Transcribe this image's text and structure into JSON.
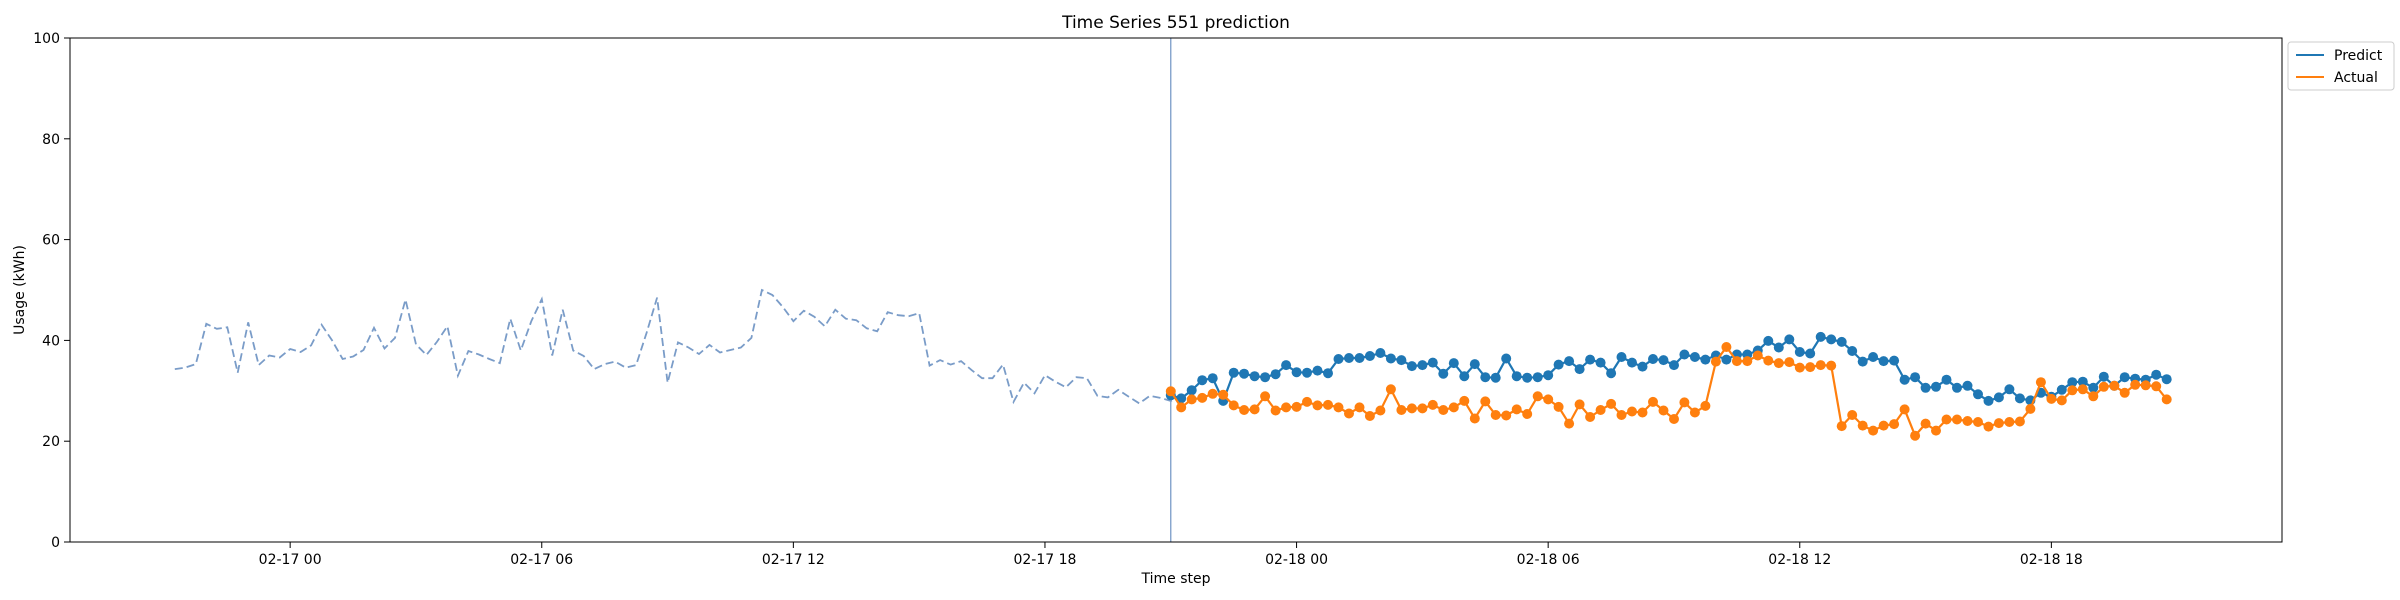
{
  "chart_data": {
    "type": "line",
    "title": "Time Series 551 prediction",
    "xlabel": "Time step",
    "ylabel": "Usage (kWh)",
    "ylim": [
      0,
      100
    ],
    "yticks": [
      "0",
      "20",
      "40",
      "60",
      "80",
      "100"
    ],
    "xticks": [
      "02-17 00",
      "02-17 06",
      "02-17 12",
      "02-17 18",
      "02-18 00",
      "02-18 06",
      "02-18 12",
      "02-18 18"
    ],
    "xtick_hours": [
      24,
      30,
      36,
      42,
      48,
      54,
      60,
      66
    ],
    "xlim_hours": [
      18.75,
      71.5
    ],
    "x_unit": "hours from 02-16 00:00",
    "grid": false,
    "legend_position": "top-right outside",
    "forecast_start_hour": 45.0,
    "colors": {
      "history": "#7a9cc8",
      "predict": "#1f77b4",
      "actual": "#ff7f0e",
      "divider": "#7a9cc8"
    },
    "history": {
      "x_start": 21.25,
      "x_step": 0.25,
      "values": [
        34.3,
        34.6,
        35.3,
        43.3,
        42.3,
        42.6,
        33.6,
        43.6,
        35.1,
        37.0,
        36.6,
        38.3,
        37.7,
        39.0,
        43.1,
        40.0,
        36.3,
        36.8,
        38.1,
        42.5,
        38.4,
        40.5,
        48.1,
        39.2,
        37.1,
        39.7,
        42.8,
        33.0,
        37.9,
        37.2,
        36.3,
        35.5,
        44.3,
        38.0,
        43.8,
        48.2,
        37.0,
        46.1,
        38.0,
        36.9,
        34.3,
        35.3,
        35.8,
        34.6,
        35.1,
        41.5,
        48.5,
        31.6,
        39.6,
        38.6,
        37.3,
        39.1,
        37.6,
        38.1,
        38.6,
        40.5,
        50.0,
        49.0,
        46.6,
        43.8,
        45.9,
        44.7,
        42.8,
        46.1,
        44.3,
        44.0,
        42.4,
        41.8,
        45.6,
        45.0,
        44.8,
        45.4,
        35.0,
        36.1,
        35.2,
        35.9,
        34.1,
        32.5,
        32.5,
        35.2,
        27.8,
        31.6,
        29.5,
        33.1,
        31.8,
        30.7,
        32.7,
        32.5,
        29.0,
        28.7,
        30.2,
        28.8,
        27.5,
        29.0,
        28.6,
        28.0,
        28.7
      ]
    },
    "series": [
      {
        "name": "Predict",
        "x_start": 45.0,
        "x_step": 0.25,
        "values": [
          29.1,
          28.5,
          30.1,
          32.1,
          32.5,
          28.0,
          33.6,
          33.4,
          32.9,
          32.7,
          33.3,
          35.1,
          33.7,
          33.6,
          34.0,
          33.5,
          36.3,
          36.5,
          36.5,
          36.9,
          37.5,
          36.4,
          36.1,
          34.9,
          35.1,
          35.6,
          33.4,
          35.5,
          32.9,
          35.3,
          32.7,
          32.6,
          36.4,
          32.9,
          32.6,
          32.7,
          33.1,
          35.2,
          35.9,
          34.3,
          36.2,
          35.6,
          33.5,
          36.7,
          35.6,
          34.8,
          36.3,
          36.1,
          35.1,
          37.2,
          36.7,
          36.2,
          37.0,
          36.2,
          37.2,
          37.2,
          38.0,
          39.9,
          38.6,
          40.2,
          37.7,
          37.4,
          40.7,
          40.2,
          39.7,
          37.9,
          35.8,
          36.7,
          35.9,
          36.0,
          32.2,
          32.7,
          30.6,
          30.8,
          32.2,
          30.6,
          31.0,
          29.3,
          28.0,
          28.7,
          30.3,
          28.5,
          28.1,
          29.6,
          28.8,
          30.2,
          31.7,
          31.8,
          30.6,
          32.8,
          31.0,
          32.7,
          32.4,
          32.2,
          33.2,
          32.3
        ]
      },
      {
        "name": "Actual",
        "x_start": 45.0,
        "x_step": 0.25,
        "values": [
          29.9,
          26.7,
          28.3,
          28.6,
          29.4,
          29.2,
          27.1,
          26.2,
          26.3,
          28.9,
          26.1,
          26.7,
          26.8,
          27.8,
          27.1,
          27.2,
          26.7,
          25.5,
          26.7,
          25.0,
          26.1,
          30.3,
          26.2,
          26.5,
          26.5,
          27.2,
          26.2,
          26.7,
          28.0,
          24.5,
          27.9,
          25.2,
          25.1,
          26.3,
          25.4,
          28.9,
          28.3,
          26.8,
          23.5,
          27.3,
          24.8,
          26.2,
          27.4,
          25.2,
          25.9,
          25.7,
          27.8,
          26.1,
          24.4,
          27.7,
          25.7,
          27.0,
          35.8,
          38.7,
          35.9,
          35.9,
          37.0,
          36.0,
          35.5,
          35.7,
          34.6,
          34.7,
          35.1,
          35.0,
          23.0,
          25.2,
          23.1,
          22.1,
          23.1,
          23.4,
          26.3,
          21.1,
          23.5,
          22.1,
          24.3,
          24.3,
          24.0,
          23.8,
          22.9,
          23.6,
          23.8,
          23.9,
          26.4,
          31.7,
          28.4,
          28.1,
          30.1,
          30.3,
          28.9,
          30.8,
          31.0,
          29.6,
          31.2,
          31.1,
          30.9,
          28.3
        ]
      }
    ]
  }
}
